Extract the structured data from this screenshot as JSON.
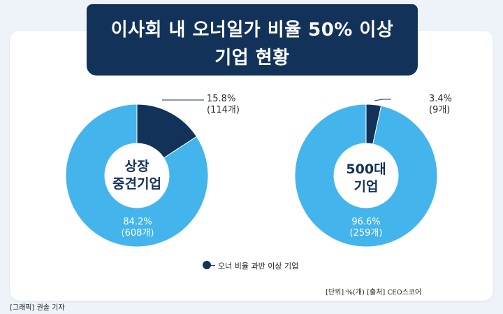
{
  "title": {
    "line1": "이사회 내 오너일가 비율 50% 이상",
    "line2": "기업 현황"
  },
  "chart_data": [
    {
      "type": "pie",
      "center_label": [
        "상장",
        "중견기업"
      ],
      "slices": [
        {
          "name": "오너 비율 과반 이상 기업",
          "value": 15.8,
          "count": 114,
          "pct_label": "15.8%",
          "count_label": "(114개)",
          "color": "#12325a"
        },
        {
          "value": 84.2,
          "count": 608,
          "pct_label": "84.2%",
          "count_label": "(608개)",
          "color": "#44b4ec"
        }
      ]
    },
    {
      "type": "pie",
      "center_label": [
        "500대",
        "기업"
      ],
      "slices": [
        {
          "name": "오너 비율 과반 이상 기업",
          "value": 3.4,
          "count": 9,
          "pct_label": "3.4%",
          "count_label": "(9개)",
          "color": "#12325a"
        },
        {
          "value": 96.6,
          "count": 259,
          "pct_label": "96.6%",
          "count_label": "(259개)",
          "color": "#44b4ec"
        }
      ]
    }
  ],
  "legend": {
    "label": "오너 비율 과반 이상 기업",
    "color": "#12325a"
  },
  "unit_source": "[단위] %(개)   [출처] CEO스코어",
  "credit": "[그래픽] 권솔 기자"
}
